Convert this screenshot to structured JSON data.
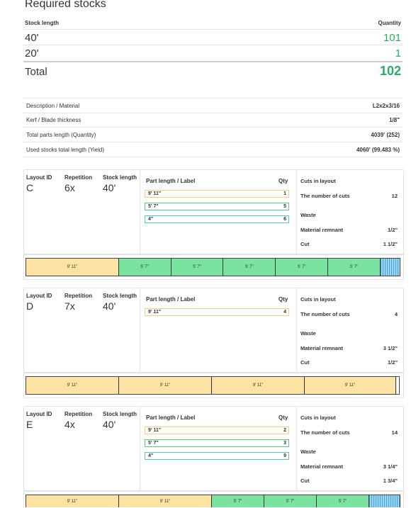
{
  "title": "Required stocks",
  "summary": {
    "col_stock": "Stock length",
    "col_qty": "Quantity",
    "rows": [
      {
        "length": "40'",
        "qty": "101"
      },
      {
        "length": "20'",
        "qty": "1"
      }
    ],
    "total_label": "Total",
    "total_value": "102"
  },
  "info": [
    {
      "label": "Description / Material",
      "value": "L2x2x3/16"
    },
    {
      "label": "Kerf / Blade thickness",
      "value": "1/8\""
    },
    {
      "label": "Total parts length (Quantity)",
      "value": "4039' (252)"
    },
    {
      "label": "Used stocks total length (Yield)",
      "value": "4060' (99.483 %)"
    }
  ],
  "headers": {
    "layout_id": "Layout ID",
    "repetition": "Repetition",
    "stock_length": "Stock length",
    "part_length": "Part length / Label",
    "qty": "Qty",
    "cuts_in_layout": "Cuts in layout",
    "number_of_cuts": "The number of cuts",
    "waste": "Waste",
    "material_remnant": "Material remnant",
    "cut": "Cut"
  },
  "layouts": [
    {
      "id": "C",
      "repetition": "6x",
      "stock": "40'",
      "parts": [
        {
          "label": "9' 11\"",
          "qty": "1"
        },
        {
          "label": "5' 7\"",
          "qty": "5"
        },
        {
          "label": "4\"",
          "qty": "6"
        }
      ],
      "cuts": "12",
      "remnant": "1/2\"",
      "cut": "1 1/2\"",
      "bar": [
        "9' 11\"",
        "5' 7\"",
        "5' 7\"",
        "5' 7\"",
        "5' 7\"",
        "5' 7\""
      ]
    },
    {
      "id": "D",
      "repetition": "7x",
      "stock": "40'",
      "parts": [
        {
          "label": "9' 11\"",
          "qty": "4"
        }
      ],
      "cuts": "4",
      "remnant": "3 1/2\"",
      "cut": "1/2\"",
      "bar": [
        "9' 11\"",
        "9' 11\"",
        "9' 11\"",
        "9' 11\""
      ]
    },
    {
      "id": "E",
      "repetition": "4x",
      "stock": "40'",
      "parts": [
        {
          "label": "9' 11\"",
          "qty": "2"
        },
        {
          "label": "5' 7\"",
          "qty": "3"
        },
        {
          "label": "4\"",
          "qty": "9"
        }
      ],
      "cuts": "14",
      "remnant": "3 1/4\"",
      "cut": "1 3/4\"",
      "bar": [
        "9' 11\"",
        "9' 11\"",
        "5' 7\"",
        "5' 7\"",
        "5' 7\""
      ]
    }
  ]
}
